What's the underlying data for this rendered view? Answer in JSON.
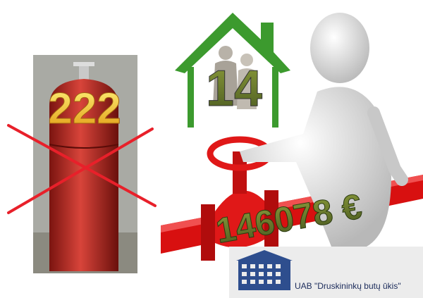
{
  "left_panel": {
    "number": "222"
  },
  "house": {
    "number": "14"
  },
  "pipe": {
    "amount": "146078 €"
  },
  "logo": {
    "text": "UAB \"Druskininkų butų ūkis\""
  }
}
